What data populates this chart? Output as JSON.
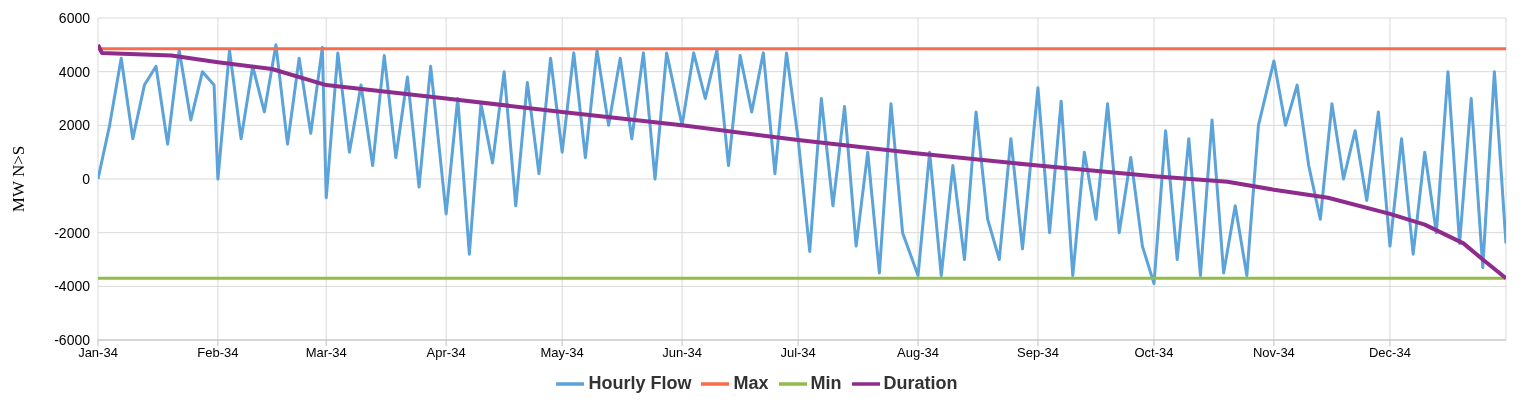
{
  "chart_data": {
    "type": "line",
    "ylabel": "MW N>S",
    "ylim": [
      -6000,
      6000
    ],
    "yticks": [
      -6000,
      -4000,
      -2000,
      0,
      2000,
      4000,
      6000
    ],
    "xlim": [
      "2034-01-01",
      "2034-12-31"
    ],
    "xticks": [
      {
        "value": "2034-01-01",
        "label": "Jan-34"
      },
      {
        "value": "2034-02-01",
        "label": "Feb-34"
      },
      {
        "value": "2034-03-01",
        "label": "Mar-34"
      },
      {
        "value": "2034-04-01",
        "label": "Apr-34"
      },
      {
        "value": "2034-05-01",
        "label": "May-34"
      },
      {
        "value": "2034-06-01",
        "label": "Jun-34"
      },
      {
        "value": "2034-07-01",
        "label": "Jul-34"
      },
      {
        "value": "2034-08-01",
        "label": "Aug-34"
      },
      {
        "value": "2034-09-01",
        "label": "Sep-34"
      },
      {
        "value": "2034-10-01",
        "label": "Oct-34"
      },
      {
        "value": "2034-11-01",
        "label": "Nov-34"
      },
      {
        "value": "2034-12-01",
        "label": "Dec-34"
      }
    ],
    "grid": true,
    "legend": "bottom",
    "marker": "none",
    "line_style": "solid",
    "series": [
      {
        "name": "Hourly Flow",
        "color": "#5ba3d9",
        "x": [
          "2034-01-01",
          "2034-01-04",
          "2034-01-07",
          "2034-01-10",
          "2034-01-13",
          "2034-01-16",
          "2034-01-19",
          "2034-01-22",
          "2034-01-25",
          "2034-01-28",
          "2034-01-31",
          "2034-02-01",
          "2034-02-04",
          "2034-02-07",
          "2034-02-10",
          "2034-02-13",
          "2034-02-16",
          "2034-02-19",
          "2034-02-22",
          "2034-02-25",
          "2034-02-28",
          "2034-03-01",
          "2034-03-04",
          "2034-03-07",
          "2034-03-10",
          "2034-03-13",
          "2034-03-16",
          "2034-03-19",
          "2034-03-22",
          "2034-03-25",
          "2034-03-28",
          "2034-04-01",
          "2034-04-04",
          "2034-04-07",
          "2034-04-10",
          "2034-04-13",
          "2034-04-16",
          "2034-04-19",
          "2034-04-22",
          "2034-04-25",
          "2034-04-28",
          "2034-05-01",
          "2034-05-04",
          "2034-05-07",
          "2034-05-10",
          "2034-05-13",
          "2034-05-16",
          "2034-05-19",
          "2034-05-22",
          "2034-05-25",
          "2034-05-28",
          "2034-06-01",
          "2034-06-04",
          "2034-06-07",
          "2034-06-10",
          "2034-06-13",
          "2034-06-16",
          "2034-06-19",
          "2034-06-22",
          "2034-06-25",
          "2034-06-28",
          "2034-07-01",
          "2034-07-04",
          "2034-07-07",
          "2034-07-10",
          "2034-07-13",
          "2034-07-16",
          "2034-07-19",
          "2034-07-22",
          "2034-07-25",
          "2034-07-28",
          "2034-08-01",
          "2034-08-04",
          "2034-08-07",
          "2034-08-10",
          "2034-08-13",
          "2034-08-16",
          "2034-08-19",
          "2034-08-22",
          "2034-08-25",
          "2034-08-28",
          "2034-09-01",
          "2034-09-04",
          "2034-09-07",
          "2034-09-10",
          "2034-09-13",
          "2034-09-16",
          "2034-09-19",
          "2034-09-22",
          "2034-09-25",
          "2034-09-28",
          "2034-10-01",
          "2034-10-04",
          "2034-10-07",
          "2034-10-10",
          "2034-10-13",
          "2034-10-16",
          "2034-10-19",
          "2034-10-22",
          "2034-10-25",
          "2034-10-28",
          "2034-11-01",
          "2034-11-04",
          "2034-11-07",
          "2034-11-10",
          "2034-11-13",
          "2034-11-16",
          "2034-11-19",
          "2034-11-22",
          "2034-11-25",
          "2034-11-28",
          "2034-12-01",
          "2034-12-04",
          "2034-12-07",
          "2034-12-10",
          "2034-12-13",
          "2034-12-16",
          "2034-12-19",
          "2034-12-22",
          "2034-12-25",
          "2034-12-28",
          "2034-12-31"
        ],
        "values": [
          0,
          2000,
          4500,
          1500,
          3500,
          4200,
          1300,
          4800,
          2200,
          4000,
          3500,
          0,
          4800,
          1500,
          4200,
          2500,
          5000,
          1300,
          4500,
          1700,
          4900,
          -700,
          4700,
          1000,
          3500,
          500,
          4600,
          800,
          3800,
          -300,
          4200,
          -1300,
          3000,
          -2800,
          2800,
          600,
          4000,
          -1000,
          3600,
          200,
          4500,
          1000,
          4700,
          800,
          4800,
          2000,
          4500,
          1500,
          4700,
          0,
          4700,
          2000,
          4700,
          3000,
          4800,
          500,
          4600,
          2500,
          4700,
          200,
          4700,
          1500,
          -2700,
          3000,
          -1000,
          2700,
          -2500,
          1000,
          -3500,
          2800,
          -2000,
          -3600,
          1000,
          -3600,
          500,
          -3000,
          2500,
          -1500,
          -3000,
          1500,
          -2600,
          3400,
          -2000,
          2900,
          -3600,
          1000,
          -1500,
          2800,
          -2000,
          800,
          -2500,
          -3900,
          1800,
          -3000,
          1500,
          -3600,
          2200,
          -3500,
          -1000,
          -3600,
          2000,
          4400,
          2000,
          3500,
          500,
          -1500,
          2800,
          0,
          1800,
          -800,
          2500,
          -2500,
          1500,
          -2800,
          1000,
          -2000,
          4000,
          -2400,
          3000,
          -3300,
          4000,
          -2400
        ]
      },
      {
        "name": "Max",
        "color": "#fa6a4c",
        "x": [
          "2034-01-01",
          "2034-12-31"
        ],
        "values": [
          4850,
          4850
        ]
      },
      {
        "name": "Min",
        "color": "#92bb4a",
        "x": [
          "2034-01-01",
          "2034-12-31"
        ],
        "values": [
          -3700,
          -3700
        ]
      },
      {
        "name": "Duration",
        "color": "#8e2c8e",
        "x": [
          "2034-01-01",
          "2034-01-02",
          "2034-01-20",
          "2034-02-01",
          "2034-02-15",
          "2034-03-01",
          "2034-04-01",
          "2034-05-01",
          "2034-06-01",
          "2034-07-01",
          "2034-08-01",
          "2034-09-01",
          "2034-10-01",
          "2034-10-20",
          "2034-11-01",
          "2034-11-15",
          "2034-12-01",
          "2034-12-10",
          "2034-12-20",
          "2034-12-25",
          "2034-12-31"
        ],
        "values": [
          5000,
          4700,
          4600,
          4350,
          4100,
          3500,
          3000,
          2500,
          2000,
          1450,
          950,
          500,
          100,
          -100,
          -400,
          -700,
          -1300,
          -1700,
          -2400,
          -3000,
          -3700
        ]
      }
    ]
  }
}
